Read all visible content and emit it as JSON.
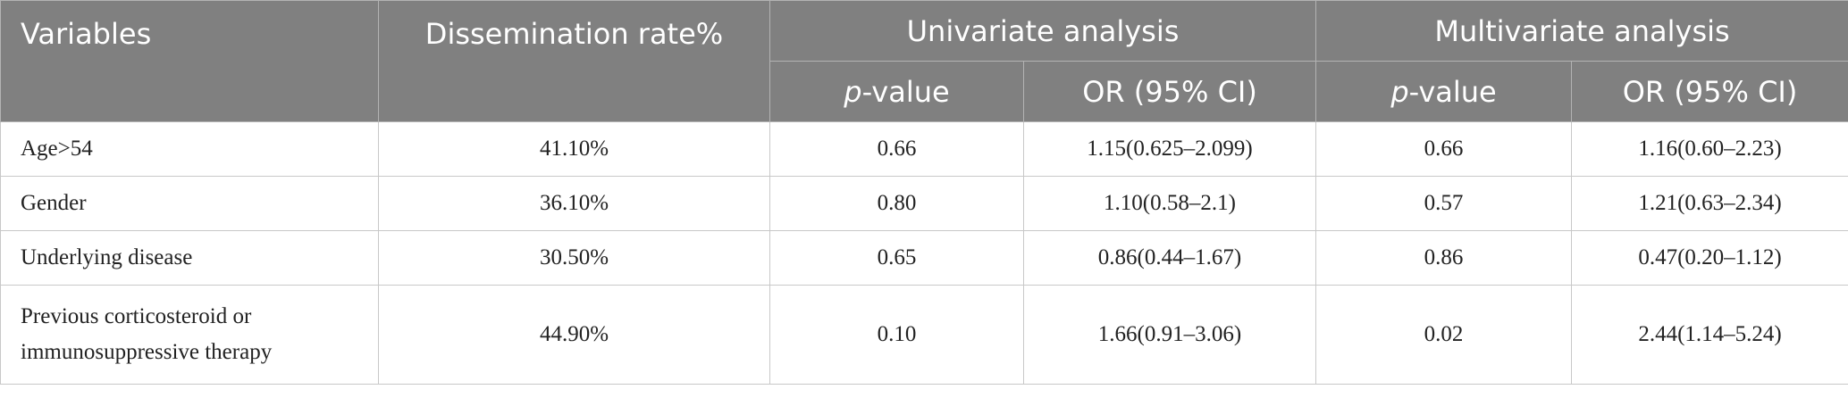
{
  "header": {
    "variables": "Variables",
    "dissemination_rate": "Dissemination rate%",
    "univariate": "Univariate analysis",
    "multivariate": "Multivariate analysis",
    "p_italic": "p",
    "p_suffix": "-value",
    "or_ci": "OR (95% CI)"
  },
  "rows": [
    {
      "variable": "Age>54",
      "rate": "41.10%",
      "uni_p": "0.66",
      "uni_or": "1.15(0.625–2.099)",
      "multi_p": "0.66",
      "multi_or": "1.16(0.60–2.23)"
    },
    {
      "variable": "Gender",
      "rate": "36.10%",
      "uni_p": "0.80",
      "uni_or": "1.10(0.58–2.1)",
      "multi_p": "0.57",
      "multi_or": "1.21(0.63–2.34)"
    },
    {
      "variable": "Underlying disease",
      "rate": "30.50%",
      "uni_p": "0.65",
      "uni_or": "0.86(0.44–1.67)",
      "multi_p": "0.86",
      "multi_or": "0.47(0.20–1.12)"
    },
    {
      "variable_line1": "Previous corticosteroid or",
      "variable_line2": "immunosuppressive therapy",
      "rate": "44.90%",
      "uni_p": "0.10",
      "uni_or": "1.66(0.91–3.06)",
      "multi_p": "0.02",
      "multi_or": "2.44(1.14–5.24)"
    }
  ]
}
